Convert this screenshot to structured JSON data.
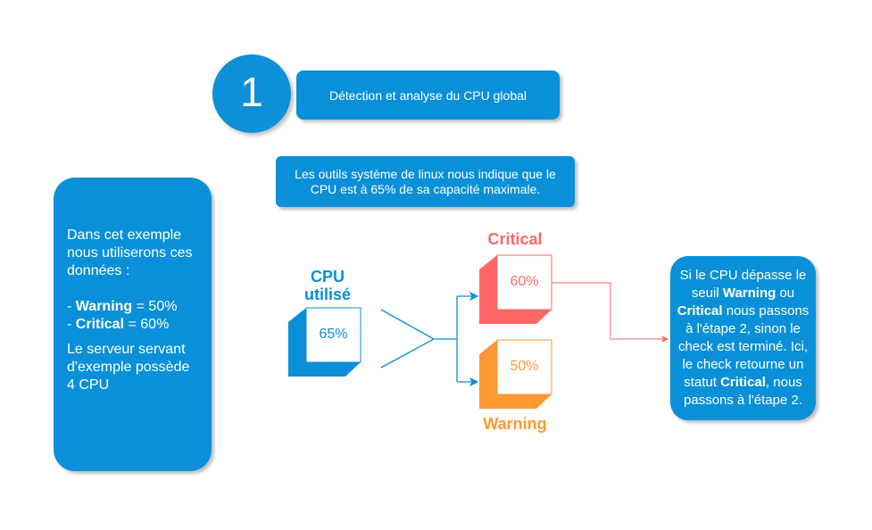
{
  "colors": {
    "blue": "#0990d8",
    "critical": "#ff6666",
    "warning": "#ff9933"
  },
  "step": {
    "number": "1",
    "title": "Détection et analyse du CPU global"
  },
  "info": "Les outils système de linux nous indique que le CPU est à 65% de sa capacité maximale.",
  "left_box": {
    "intro": "Dans cet exemple nous utiliserons ces données :",
    "warning_label": "Warning",
    "warning_value": " = 50%",
    "critical_label": "Critical",
    "critical_value": " = 60%",
    "server": "Le serveur servant d'exemple possède 4 CPU",
    "dash": "- "
  },
  "cpu": {
    "label": "CPU utilisé",
    "value": "65%"
  },
  "critical": {
    "label": "Critical",
    "value": "60%"
  },
  "warning": {
    "label": "Warning",
    "value": "50%"
  },
  "right_box": {
    "p1": "Si le CPU dépasse le seuil ",
    "b1": "Warning",
    "p2": " ou ",
    "b2": "Critical",
    "p3": " nous passons à l'étape 2, sinon le check est terminé. Ici, le check retourne un statut ",
    "b3": "Critical",
    "p4": ", nous passons à l'étape 2."
  }
}
